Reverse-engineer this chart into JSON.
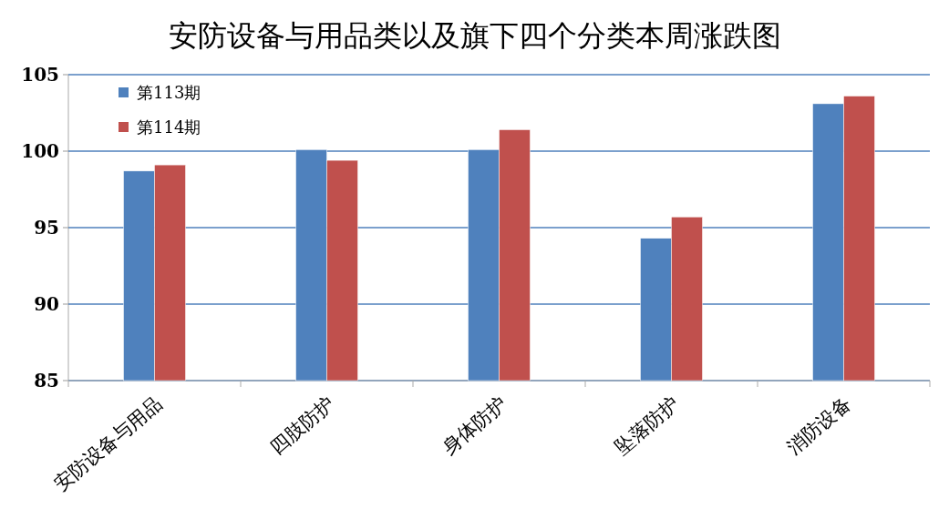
{
  "chart_data": {
    "type": "bar",
    "title": "安防设备与用品类以及旗下四个分类本周涨跌图",
    "categories": [
      "安防设备与用品",
      "四肢防护",
      "身体防护",
      "坠落防护",
      "消防设备"
    ],
    "series": [
      {
        "name": "第113期",
        "color": "#4f81bd",
        "values": [
          98.7,
          100.1,
          100.1,
          94.3,
          103.1
        ]
      },
      {
        "name": "第114期",
        "color": "#c0504d",
        "values": [
          99.1,
          99.4,
          101.4,
          95.7,
          103.6
        ]
      }
    ],
    "ylim": [
      85,
      105
    ],
    "yticks": [
      85,
      90,
      95,
      100,
      105
    ],
    "grid": "y",
    "legend": "top left"
  }
}
